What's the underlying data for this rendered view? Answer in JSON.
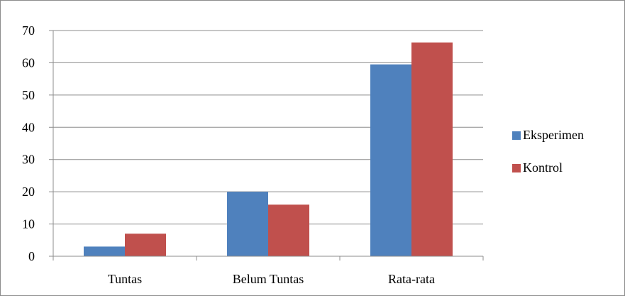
{
  "chart_data": {
    "type": "bar",
    "categories": [
      "Tuntas",
      "Belum Tuntas",
      "Rata-rata"
    ],
    "series": [
      {
        "name": "Eksperimen",
        "color": "#4f81bd",
        "values": [
          3,
          20,
          59.5
        ]
      },
      {
        "name": "Kontrol",
        "color": "#c0504d",
        "values": [
          7,
          16,
          66.3
        ]
      }
    ],
    "ylim": [
      0,
      70
    ],
    "yticks": [
      0,
      10,
      20,
      30,
      40,
      50,
      60,
      70
    ],
    "grid": true,
    "legend": "right",
    "title": "",
    "xlabel": "",
    "ylabel": ""
  }
}
